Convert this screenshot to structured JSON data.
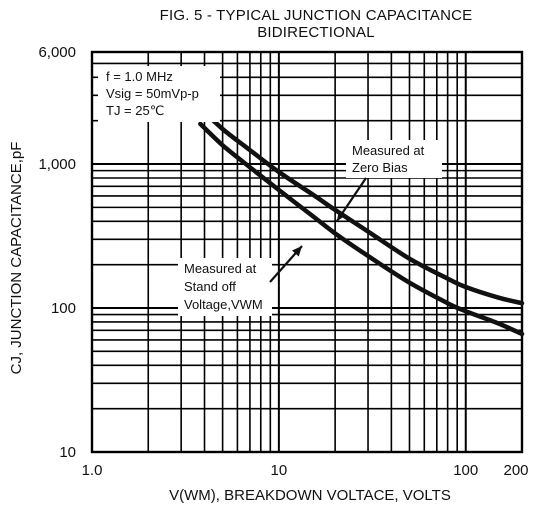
{
  "chart_data": {
    "type": "line",
    "title_line1": "FIG. 5 - TYPICAL JUNCTION CAPACITANCE",
    "title_line2": "BIDIRECTIONAL",
    "xlabel": "V(WM), BREAKDOWN VOLTACE, VOLTS",
    "ylabel": "CJ, JUNCTION CAPACITANCE,pF",
    "xscale": "log",
    "yscale": "log",
    "xlim": [
      1.0,
      200
    ],
    "ylim": [
      10,
      6000
    ],
    "grid": true,
    "x_ticks": [
      {
        "value": 1.0,
        "label": "1.0"
      },
      {
        "value": 10,
        "label": "10"
      },
      {
        "value": 100,
        "label": "100"
      },
      {
        "value": 200,
        "label": "200"
      }
    ],
    "y_ticks": [
      {
        "value": 10,
        "label": "10"
      },
      {
        "value": 100,
        "label": "100"
      },
      {
        "value": 1000,
        "label": "1,000"
      },
      {
        "value": 6000,
        "label": "6,000"
      }
    ],
    "conditions": [
      "f = 1.0 MHz",
      "Vsig = 50mVp-p",
      "TJ = 25℃"
    ],
    "series": [
      {
        "name": "Measured at Zero Bias",
        "points": [
          [
            3.8,
            2450
          ],
          [
            5,
            1750
          ],
          [
            7,
            1250
          ],
          [
            10,
            880
          ],
          [
            15,
            620
          ],
          [
            20,
            480
          ],
          [
            30,
            340
          ],
          [
            50,
            220
          ],
          [
            80,
            160
          ],
          [
            100,
            140
          ],
          [
            150,
            118
          ],
          [
            200,
            108
          ]
        ]
      },
      {
        "name": "Measured at Stand off Voltage,VWM",
        "points": [
          [
            3.8,
            1900
          ],
          [
            5,
            1350
          ],
          [
            7,
            950
          ],
          [
            10,
            660
          ],
          [
            15,
            440
          ],
          [
            20,
            330
          ],
          [
            30,
            230
          ],
          [
            50,
            150
          ],
          [
            80,
            108
          ],
          [
            100,
            95
          ],
          [
            150,
            78
          ],
          [
            200,
            66
          ]
        ]
      }
    ],
    "annotations": [
      {
        "series": 0,
        "lines": [
          "Measured at",
          "Zero Bias"
        ]
      },
      {
        "series": 1,
        "lines": [
          "Measured at",
          "Stand off",
          "Voltage,VWM"
        ]
      }
    ]
  }
}
